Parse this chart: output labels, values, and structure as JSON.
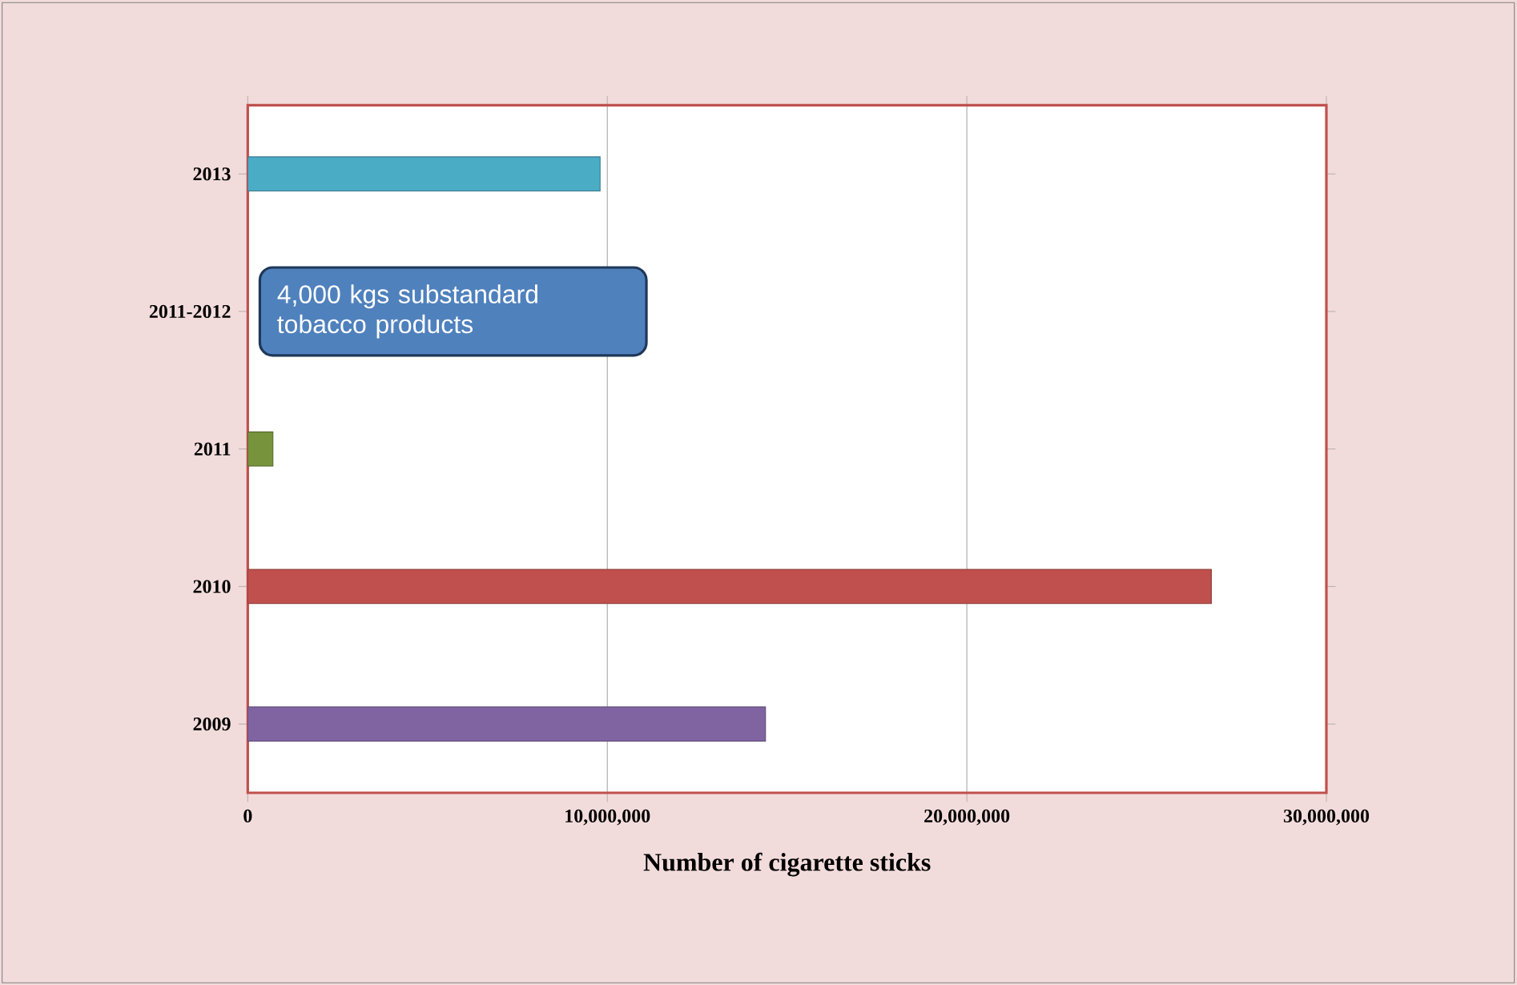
{
  "chart_data": {
    "type": "bar",
    "orientation": "horizontal",
    "categories": [
      "2013",
      "2011-2012",
      "2011",
      "2010",
      "2009"
    ],
    "values": [
      9800000,
      null,
      700000,
      26800000,
      14400000
    ],
    "colors": [
      "#4bacc6",
      "#4f81bd",
      "#77933c",
      "#c0504d",
      "#8064a2"
    ],
    "xlabel": "Number of cigarette sticks",
    "xlim": [
      0,
      30000000
    ],
    "xticks": [
      0,
      {
        "value": 10000000,
        "label": "10,000,000"
      },
      {
        "value": 20000000,
        "label": "20,000,000"
      },
      {
        "value": 30000000,
        "label": "30,000,000"
      }
    ],
    "grid": "x",
    "annotations": [
      "4,000 kgs substandard tobacco products"
    ]
  }
}
